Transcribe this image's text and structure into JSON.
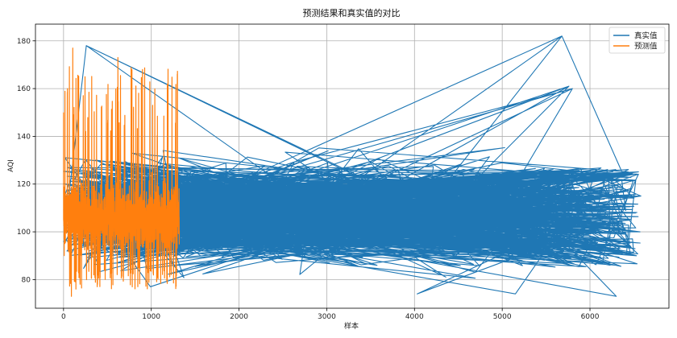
{
  "chart_data": {
    "type": "line",
    "title": "预测结果和真实值的对比",
    "xlabel": "样本",
    "ylabel": "AQI",
    "xlim": [
      -320,
      6900
    ],
    "ylim": [
      68,
      187
    ],
    "xticks": [
      0,
      1000,
      2000,
      3000,
      4000,
      5000,
      6000
    ],
    "yticks": [
      80,
      100,
      120,
      140,
      160,
      180
    ],
    "grid": true,
    "legend_position": "top-right",
    "series": [
      {
        "name": "真实值",
        "color": "#1f77b4",
        "value_range": [
          74,
          182
        ],
        "x_range": [
          0,
          6580
        ],
        "x_order": "shuffled",
        "notable_points": [
          [
            260,
            178
          ],
          [
            5680,
            182
          ],
          [
            5760,
            161
          ],
          [
            5800,
            160
          ],
          [
            6580,
            115
          ],
          [
            6570,
            100
          ],
          [
            990,
            77
          ],
          [
            4030,
            74
          ],
          [
            5150,
            74
          ],
          [
            6300,
            73
          ]
        ]
      },
      {
        "name": "预测值",
        "color": "#ff7f0e",
        "value_range": [
          73,
          177
        ],
        "x_range": [
          0,
          1320
        ],
        "x_order": "sequential",
        "notable_points": [
          [
            105,
            177
          ],
          [
            620,
            173
          ],
          [
            900,
            168
          ],
          [
            0,
            150
          ],
          [
            90,
            73
          ]
        ]
      }
    ]
  }
}
